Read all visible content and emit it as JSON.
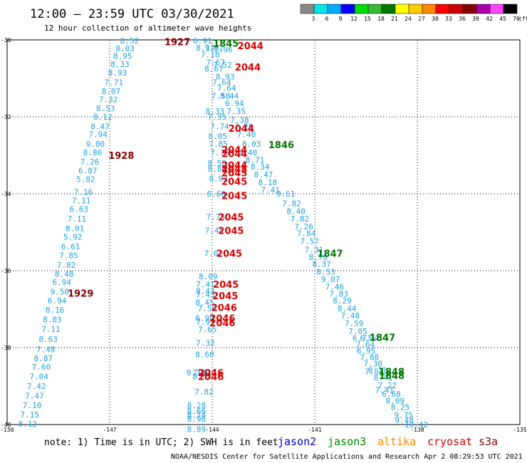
{
  "header": {
    "title": "12:00 — 23:59 UTC 03/30/2021",
    "subtitle": "12 hour collection of altimeter wave heights"
  },
  "legend": {
    "unit": "(ft)",
    "bins": [
      {
        "label": "3",
        "color": "#888888"
      },
      {
        "label": "6",
        "color": "#00e5e5"
      },
      {
        "label": "9",
        "color": "#00aaff"
      },
      {
        "label": "12",
        "color": "#0000ff"
      },
      {
        "label": "15",
        "color": "#00dd00"
      },
      {
        "label": "18",
        "color": "#33bb33"
      },
      {
        "label": "21",
        "color": "#007700"
      },
      {
        "label": "24",
        "color": "#ffff00"
      },
      {
        "label": "27",
        "color": "#ffcc00"
      },
      {
        "label": "30",
        "color": "#ff8800"
      },
      {
        "label": "33",
        "color": "#ff0000"
      },
      {
        "label": "36",
        "color": "#cc0000"
      },
      {
        "label": "39",
        "color": "#880000"
      },
      {
        "label": "42",
        "color": "#aa00aa"
      },
      {
        "label": "45",
        "color": "#ff44ff"
      },
      {
        "label": "70",
        "color": "#000000"
      }
    ]
  },
  "footer": {
    "note": "note: 1) Time is in UTC; 2) SWH is in feet",
    "satellites": [
      {
        "name": "jason2",
        "color": "#0000cc"
      },
      {
        "name": "jason3",
        "color": "#008800"
      },
      {
        "name": "altika",
        "color": "#ff8800"
      },
      {
        "name": "cryosat",
        "color": "#dd0000"
      },
      {
        "name": "s3a",
        "color": "#880000"
      }
    ],
    "credit": "NOAA/NESDIS Center for Satellite Applications and Research   Apr  2 08:29:53 UTC 2021"
  },
  "colors": {
    "swh": "#1ea0e6",
    "swh_high": "#000099",
    "jason3": "#007700",
    "cryosat": "#dd0000",
    "s3a": "#880000"
  },
  "chart_data": {
    "type": "scatter",
    "xlim": [
      -150,
      -135
    ],
    "ylim": [
      -40,
      -30
    ],
    "xticks": [
      "-150",
      "-147",
      "-144",
      "-141",
      "-138",
      "-135"
    ],
    "yticks": [
      "-30",
      "-32",
      "-34",
      "-36",
      "-38",
      "-40"
    ],
    "x_tick_values": [
      -150,
      -147,
      -144,
      -141,
      -138,
      -135
    ],
    "y_tick_values": [
      -30,
      -32,
      -34,
      -36,
      -38,
      -40
    ],
    "wave_heights": [
      {
        "lon": -146.42,
        "lat": -30.02,
        "v": "8.52"
      },
      {
        "lon": -146.55,
        "lat": -30.22,
        "v": "8.03"
      },
      {
        "lon": -146.62,
        "lat": -30.42,
        "v": "8.95"
      },
      {
        "lon": -146.7,
        "lat": -30.63,
        "v": "8.33"
      },
      {
        "lon": -146.77,
        "lat": -30.85,
        "v": "8.93"
      },
      {
        "lon": -146.88,
        "lat": -31.1,
        "v": "7.71"
      },
      {
        "lon": -146.96,
        "lat": -31.33,
        "v": "8.07"
      },
      {
        "lon": -147.04,
        "lat": -31.55,
        "v": "7.32"
      },
      {
        "lon": -147.12,
        "lat": -31.78,
        "v": "8.53"
      },
      {
        "lon": -147.2,
        "lat": -32.0,
        "v": "8.12"
      },
      {
        "lon": -147.28,
        "lat": -32.25,
        "v": "8.47"
      },
      {
        "lon": -147.34,
        "lat": -32.45,
        "v": "7.94"
      },
      {
        "lon": -147.42,
        "lat": -32.7,
        "v": "9.00"
      },
      {
        "lon": -147.5,
        "lat": -32.93,
        "v": "8.86"
      },
      {
        "lon": -147.58,
        "lat": -33.17,
        "v": "7.26"
      },
      {
        "lon": -147.64,
        "lat": -33.4,
        "v": "6.87"
      },
      {
        "lon": -147.7,
        "lat": -33.62,
        "v": "5.82"
      },
      {
        "lon": -147.77,
        "lat": -33.95,
        "v": "7.16"
      },
      {
        "lon": -147.83,
        "lat": -34.18,
        "v": "7.11"
      },
      {
        "lon": -147.9,
        "lat": -34.4,
        "v": "6.63"
      },
      {
        "lon": -147.96,
        "lat": -34.65,
        "v": "7.11"
      },
      {
        "lon": -148.02,
        "lat": -34.9,
        "v": "8.01"
      },
      {
        "lon": -148.08,
        "lat": -35.12,
        "v": "5.92"
      },
      {
        "lon": -148.14,
        "lat": -35.37,
        "v": "6.61"
      },
      {
        "lon": -148.2,
        "lat": -35.6,
        "v": "7.85"
      },
      {
        "lon": -148.27,
        "lat": -35.85,
        "v": "7.82"
      },
      {
        "lon": -148.33,
        "lat": -36.08,
        "v": "8.48"
      },
      {
        "lon": -148.4,
        "lat": -36.3,
        "v": "6.94"
      },
      {
        "lon": -148.46,
        "lat": -36.55,
        "v": "9.50",
        "hi": true
      },
      {
        "lon": -148.54,
        "lat": -36.78,
        "v": "6.94"
      },
      {
        "lon": -148.6,
        "lat": -37.02,
        "v": "8.16"
      },
      {
        "lon": -148.68,
        "lat": -37.27,
        "v": "8.03"
      },
      {
        "lon": -148.72,
        "lat": -37.52,
        "v": "7.11"
      },
      {
        "lon": -148.8,
        "lat": -37.78,
        "v": "8.63"
      },
      {
        "lon": -148.87,
        "lat": -38.05,
        "v": "7.48"
      },
      {
        "lon": -148.94,
        "lat": -38.28,
        "v": "8.87"
      },
      {
        "lon": -149.0,
        "lat": -38.5,
        "v": "7.60"
      },
      {
        "lon": -149.07,
        "lat": -38.75,
        "v": "7.04"
      },
      {
        "lon": -149.14,
        "lat": -39.0,
        "v": "7.42"
      },
      {
        "lon": -149.2,
        "lat": -39.25,
        "v": "7.47"
      },
      {
        "lon": -149.27,
        "lat": -39.5,
        "v": "7.10"
      },
      {
        "lon": -149.34,
        "lat": -39.74,
        "v": "7.15"
      },
      {
        "lon": -149.4,
        "lat": -39.98,
        "v": "8.12"
      },
      {
        "lon": -144.28,
        "lat": -30.02,
        "v": "6.91"
      },
      {
        "lon": -144.2,
        "lat": -30.2,
        "v": "8.13"
      },
      {
        "lon": -143.94,
        "lat": -30.2,
        "v": "9.62"
      },
      {
        "lon": -143.68,
        "lat": -30.25,
        "v": "7.96"
      },
      {
        "lon": -144.06,
        "lat": -30.38,
        "v": "7.18"
      },
      {
        "lon": -143.9,
        "lat": -30.58,
        "v": "7.67"
      },
      {
        "lon": -143.7,
        "lat": -30.65,
        "v": "7.52"
      },
      {
        "lon": -143.95,
        "lat": -30.75,
        "v": "8.67"
      },
      {
        "lon": -143.62,
        "lat": -30.95,
        "v": "8.93"
      },
      {
        "lon": -143.72,
        "lat": -31.1,
        "v": "7.64"
      },
      {
        "lon": -143.58,
        "lat": -31.25,
        "v": "7.64"
      },
      {
        "lon": -143.75,
        "lat": -31.45,
        "v": "7.58"
      },
      {
        "lon": -143.5,
        "lat": -31.45,
        "v": "8.44"
      },
      {
        "lon": -143.35,
        "lat": -31.65,
        "v": "6.94"
      },
      {
        "lon": -143.92,
        "lat": -31.85,
        "v": "8.33"
      },
      {
        "lon": -143.3,
        "lat": -31.85,
        "v": "7.35"
      },
      {
        "lon": -143.86,
        "lat": -32.0,
        "v": "7.35"
      },
      {
        "lon": -143.2,
        "lat": -32.08,
        "v": "7.38"
      },
      {
        "lon": -143.78,
        "lat": -32.25,
        "v": "7.74"
      },
      {
        "lon": -143.08,
        "lat": -32.25,
        "v": "7.26"
      },
      {
        "lon": -143.84,
        "lat": -32.5,
        "v": "8.05"
      },
      {
        "lon": -143.0,
        "lat": -32.45,
        "v": "7.40"
      },
      {
        "lon": -143.82,
        "lat": -32.7,
        "v": "7.85"
      },
      {
        "lon": -142.85,
        "lat": -32.7,
        "v": "8.03"
      },
      {
        "lon": -143.78,
        "lat": -32.93,
        "v": "7.76"
      },
      {
        "lon": -142.96,
        "lat": -32.93,
        "v": "7.40"
      },
      {
        "lon": -142.75,
        "lat": -33.12,
        "v": "8.71"
      },
      {
        "lon": -143.86,
        "lat": -33.2,
        "v": "8.56"
      },
      {
        "lon": -142.6,
        "lat": -33.3,
        "v": "8.34"
      },
      {
        "lon": -143.86,
        "lat": -33.35,
        "v": "8.84"
      },
      {
        "lon": -142.5,
        "lat": -33.5,
        "v": "8.47"
      },
      {
        "lon": -143.82,
        "lat": -33.6,
        "v": "8.92"
      },
      {
        "lon": -142.38,
        "lat": -33.7,
        "v": "8.18"
      },
      {
        "lon": -142.3,
        "lat": -33.9,
        "v": "7.41"
      },
      {
        "lon": -143.88,
        "lat": -34.0,
        "v": "8.60"
      },
      {
        "lon": -141.85,
        "lat": -34.0,
        "v": "9.61",
        "hi": true
      },
      {
        "lon": -141.68,
        "lat": -34.25,
        "v": "7.82"
      },
      {
        "lon": -141.55,
        "lat": -34.45,
        "v": "8.40"
      },
      {
        "lon": -141.44,
        "lat": -34.65,
        "v": "7.82"
      },
      {
        "lon": -143.9,
        "lat": -34.6,
        "v": "7.75"
      },
      {
        "lon": -141.32,
        "lat": -34.85,
        "v": "7.26"
      },
      {
        "lon": -143.94,
        "lat": -34.95,
        "v": "7.45"
      },
      {
        "lon": -141.25,
        "lat": -35.03,
        "v": "7.84"
      },
      {
        "lon": -141.15,
        "lat": -35.23,
        "v": "7.57"
      },
      {
        "lon": -141.02,
        "lat": -35.45,
        "v": "7.31"
      },
      {
        "lon": -140.9,
        "lat": -35.65,
        "v": "8.76"
      },
      {
        "lon": -143.96,
        "lat": -35.55,
        "v": "7.62"
      },
      {
        "lon": -140.8,
        "lat": -35.82,
        "v": "8.37"
      },
      {
        "lon": -140.68,
        "lat": -36.03,
        "v": "8.53"
      },
      {
        "lon": -140.54,
        "lat": -36.22,
        "v": "9.07",
        "hi": true
      },
      {
        "lon": -144.12,
        "lat": -36.15,
        "v": "8.09"
      },
      {
        "lon": -140.42,
        "lat": -36.42,
        "v": "7.46"
      },
      {
        "lon": -144.2,
        "lat": -36.35,
        "v": "7.41"
      },
      {
        "lon": -140.3,
        "lat": -36.6,
        "v": "7.83"
      },
      {
        "lon": -144.2,
        "lat": -36.53,
        "v": "8.43"
      },
      {
        "lon": -144.2,
        "lat": -36.62,
        "v": "7.43"
      },
      {
        "lon": -140.2,
        "lat": -36.78,
        "v": "8.29"
      },
      {
        "lon": -144.22,
        "lat": -36.82,
        "v": "8.45"
      },
      {
        "lon": -140.06,
        "lat": -36.98,
        "v": "8.44"
      },
      {
        "lon": -144.15,
        "lat": -36.98,
        "v": "7.58"
      },
      {
        "lon": -139.96,
        "lat": -37.17,
        "v": "7.48"
      },
      {
        "lon": -144.22,
        "lat": -37.23,
        "v": "6.99"
      },
      {
        "lon": -139.85,
        "lat": -37.37,
        "v": "7.59"
      },
      {
        "lon": -144.2,
        "lat": -37.33,
        "v": "7.97"
      },
      {
        "lon": -144.14,
        "lat": -37.53,
        "v": "7.65"
      },
      {
        "lon": -139.74,
        "lat": -37.57,
        "v": "7.05"
      },
      {
        "lon": -139.62,
        "lat": -37.75,
        "v": "6.73"
      },
      {
        "lon": -139.4,
        "lat": -37.75,
        "v": "6.74"
      },
      {
        "lon": -139.52,
        "lat": -37.92,
        "v": "7.64"
      },
      {
        "lon": -144.2,
        "lat": -37.88,
        "v": "7.32"
      },
      {
        "lon": -139.5,
        "lat": -38.08,
        "v": "6.95"
      },
      {
        "lon": -144.22,
        "lat": -38.18,
        "v": "8.60"
      },
      {
        "lon": -139.4,
        "lat": -38.25,
        "v": "7.88"
      },
      {
        "lon": -139.3,
        "lat": -38.42,
        "v": "7.30"
      },
      {
        "lon": -139.16,
        "lat": -38.58,
        "v": "8.11"
      },
      {
        "lon": -139.26,
        "lat": -38.62,
        "v": "7.53"
      },
      {
        "lon": -144.48,
        "lat": -38.65,
        "v": "9.38",
        "hi": true
      },
      {
        "lon": -144.3,
        "lat": -38.65,
        "v": "7.82"
      },
      {
        "lon": -139.0,
        "lat": -38.78,
        "v": "8.41"
      },
      {
        "lon": -144.3,
        "lat": -38.75,
        "v": "8.53"
      },
      {
        "lon": -138.88,
        "lat": -38.98,
        "v": "7.22"
      },
      {
        "lon": -138.96,
        "lat": -39.1,
        "v": "7.41"
      },
      {
        "lon": -138.76,
        "lat": -39.2,
        "v": "6.68"
      },
      {
        "lon": -144.24,
        "lat": -39.15,
        "v": "7.82"
      },
      {
        "lon": -138.65,
        "lat": -39.38,
        "v": "8.09"
      },
      {
        "lon": -138.5,
        "lat": -39.55,
        "v": "8.25"
      },
      {
        "lon": -144.46,
        "lat": -39.5,
        "v": "8.28"
      },
      {
        "lon": -144.46,
        "lat": -39.65,
        "v": "8.66"
      },
      {
        "lon": -138.4,
        "lat": -39.75,
        "v": "9.75"
      },
      {
        "lon": -144.46,
        "lat": -39.75,
        "v": "8.74"
      },
      {
        "lon": -144.46,
        "lat": -39.85,
        "v": "8.96"
      },
      {
        "lon": -138.38,
        "lat": -39.88,
        "v": "9.48",
        "hi": true
      },
      {
        "lon": -138.03,
        "lat": -40.0,
        "v": "10.42",
        "hi": true
      },
      {
        "lon": -144.46,
        "lat": -40.12,
        "v": "8.89"
      }
    ],
    "pass_times": [
      {
        "lon": -145.02,
        "lat": -30.05,
        "t": "1927",
        "sat": "s3a"
      },
      {
        "lon": -146.66,
        "lat": -33.0,
        "t": "1928",
        "sat": "s3a"
      },
      {
        "lon": -147.85,
        "lat": -36.58,
        "t": "1929",
        "sat": "s3a"
      },
      {
        "lon": -143.6,
        "lat": -30.08,
        "t": "1845",
        "sat": "jason3"
      },
      {
        "lon": -142.88,
        "lat": -30.15,
        "t": "2044",
        "sat": "cryosat"
      },
      {
        "lon": -142.96,
        "lat": -30.7,
        "t": "2044",
        "sat": "cryosat"
      },
      {
        "lon": -143.15,
        "lat": -32.3,
        "t": "2044",
        "sat": "cryosat"
      },
      {
        "lon": -141.98,
        "lat": -32.72,
        "t": "1846",
        "sat": "jason3"
      },
      {
        "lon": -143.35,
        "lat": -32.85,
        "t": "2044",
        "sat": "cryosat"
      },
      {
        "lon": -143.35,
        "lat": -32.95,
        "t": "2044",
        "sat": "cryosat"
      },
      {
        "lon": -143.35,
        "lat": -33.25,
        "t": "2044",
        "sat": "cryosat"
      },
      {
        "lon": -143.35,
        "lat": -33.35,
        "t": "2045",
        "sat": "cryosat"
      },
      {
        "lon": -143.35,
        "lat": -33.45,
        "t": "2045",
        "sat": "cryosat"
      },
      {
        "lon": -143.35,
        "lat": -33.68,
        "t": "2045",
        "sat": "cryosat"
      },
      {
        "lon": -143.35,
        "lat": -34.05,
        "t": "2045",
        "sat": "cryosat"
      },
      {
        "lon": -143.45,
        "lat": -34.6,
        "t": "2045",
        "sat": "cryosat"
      },
      {
        "lon": -143.45,
        "lat": -34.95,
        "t": "2045",
        "sat": "cryosat"
      },
      {
        "lon": -140.55,
        "lat": -35.55,
        "t": "1847",
        "sat": "jason3"
      },
      {
        "lon": -143.5,
        "lat": -35.55,
        "t": "2045",
        "sat": "cryosat"
      },
      {
        "lon": -143.6,
        "lat": -36.35,
        "t": "2045",
        "sat": "cryosat"
      },
      {
        "lon": -143.62,
        "lat": -36.65,
        "t": "2045",
        "sat": "cryosat"
      },
      {
        "lon": -143.65,
        "lat": -36.95,
        "t": "2046",
        "sat": "cryosat"
      },
      {
        "lon": -143.7,
        "lat": -37.23,
        "t": "2046",
        "sat": "cryosat"
      },
      {
        "lon": -143.7,
        "lat": -37.35,
        "t": "2046",
        "sat": "cryosat"
      },
      {
        "lon": -139.02,
        "lat": -37.73,
        "t": "1847",
        "sat": "jason3"
      },
      {
        "lon": -144.04,
        "lat": -38.65,
        "t": "2046",
        "sat": "cryosat"
      },
      {
        "lon": -144.04,
        "lat": -38.75,
        "t": "2046",
        "sat": "cryosat"
      },
      {
        "lon": -138.75,
        "lat": -38.62,
        "t": "1848",
        "sat": "jason3"
      },
      {
        "lon": -138.75,
        "lat": -38.72,
        "t": "1848",
        "sat": "jason3"
      }
    ]
  }
}
